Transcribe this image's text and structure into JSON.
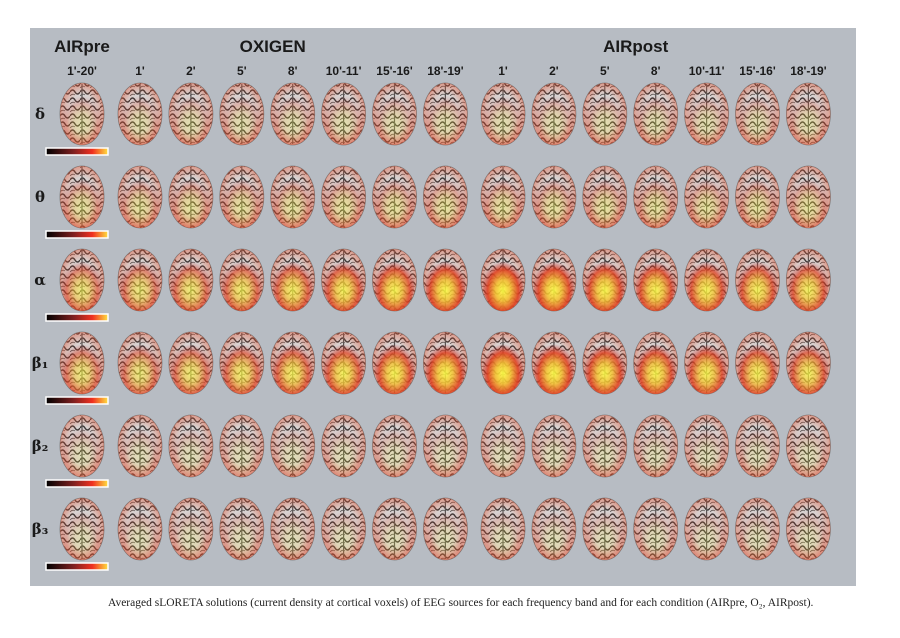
{
  "figure": {
    "groups": [
      {
        "title": "AIRpre",
        "times": [
          "1'-20'"
        ]
      },
      {
        "title": "OXIGEN",
        "times": [
          "1'",
          "2'",
          "5'",
          "8'",
          "10'-11'",
          "15'-16'",
          "18'-19'"
        ]
      },
      {
        "title": "AIRpost",
        "times": [
          "1'",
          "2'",
          "5'",
          "8'",
          "10'-11'",
          "15'-16'",
          "18'-19'"
        ]
      }
    ],
    "bands": [
      "δ",
      "θ",
      "α",
      "β₁",
      "β₂",
      "β₃"
    ],
    "caption": "Averaged sLORETA solutions (current density at cortical voxels) of EEG sources for each frequency band and for each condition (AIRpre, O₂, AIRpost)."
  }
}
